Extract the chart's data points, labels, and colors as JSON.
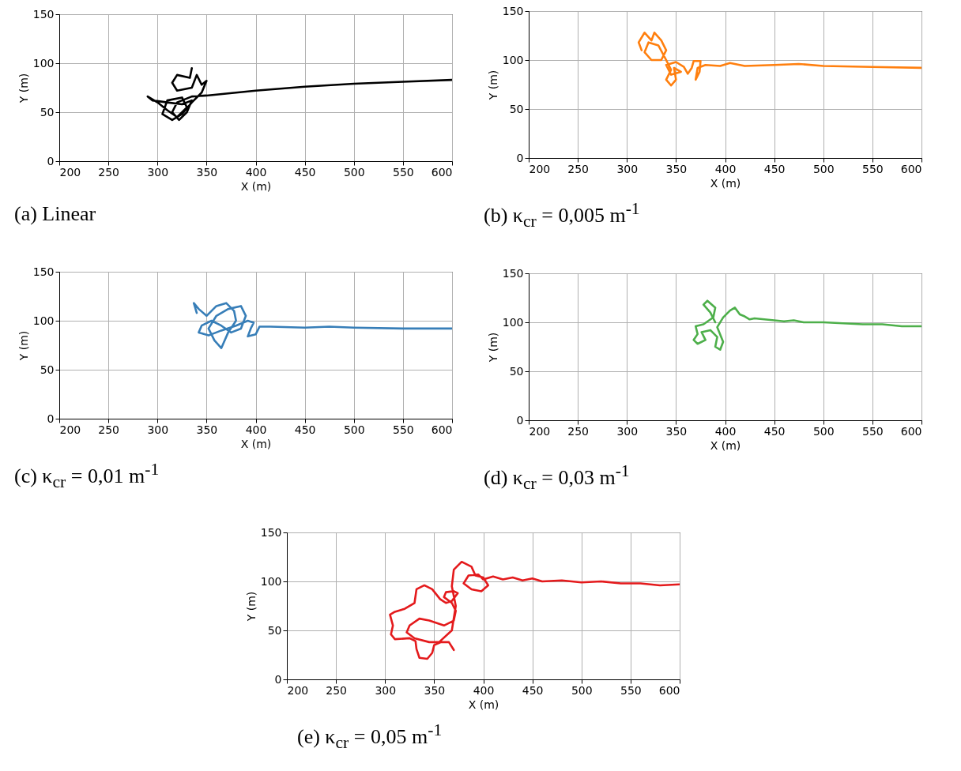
{
  "chart_data": [
    {
      "type": "line",
      "title": "(a) Linear",
      "xlabel": "X (m)",
      "ylabel": "Y (m)",
      "xlim": [
        200,
        600
      ],
      "ylim": [
        0,
        150
      ],
      "xticks": [
        200,
        250,
        300,
        350,
        400,
        450,
        500,
        550,
        600
      ],
      "yticks": [
        0,
        50,
        100,
        150
      ],
      "grid": true,
      "series": [
        {
          "color": "#000000",
          "x": [
            335,
            333,
            320,
            315,
            320,
            335,
            340,
            345,
            350,
            345,
            335,
            325,
            315,
            305,
            310,
            325,
            330,
            320,
            310,
            300,
            290,
            295,
            310,
            325,
            335,
            330,
            322,
            315,
            320,
            335,
            350,
            400,
            450,
            500,
            550,
            600
          ],
          "values": [
            95,
            85,
            88,
            80,
            72,
            75,
            88,
            78,
            82,
            70,
            60,
            48,
            42,
            48,
            62,
            65,
            55,
            45,
            52,
            60,
            66,
            62,
            60,
            58,
            62,
            50,
            42,
            50,
            60,
            66,
            67,
            72,
            76,
            79,
            81,
            83
          ]
        }
      ]
    },
    {
      "type": "line",
      "title": "(b) κ$_{cr}$ = 0,005 m$^{-1}$",
      "xlabel": "X (m)",
      "ylabel": "Y (m)",
      "xlim": [
        200,
        600
      ],
      "ylim": [
        0,
        150
      ],
      "xticks": [
        200,
        250,
        300,
        350,
        400,
        450,
        500,
        550,
        600
      ],
      "yticks": [
        0,
        50,
        100,
        150
      ],
      "grid": true,
      "series": [
        {
          "color": "#ff7f0e",
          "x": [
            315,
            312,
            318,
            325,
            328,
            335,
            340,
            335,
            325,
            318,
            322,
            332,
            340,
            345,
            340,
            345,
            350,
            348,
            355,
            345,
            340,
            350,
            358,
            362,
            366,
            368,
            375,
            374,
            370,
            372,
            380,
            395,
            405,
            420,
            450,
            475,
            500,
            550,
            600
          ],
          "values": [
            110,
            118,
            128,
            120,
            128,
            120,
            110,
            100,
            100,
            108,
            118,
            115,
            100,
            90,
            80,
            74,
            80,
            92,
            88,
            85,
            95,
            98,
            93,
            86,
            92,
            99,
            99,
            88,
            80,
            92,
            95,
            94,
            97,
            94,
            95,
            96,
            94,
            93,
            92
          ]
        }
      ]
    },
    {
      "type": "line",
      "title": "(c) κ$_{cr}$ = 0,01 m$^{-1}$",
      "xlabel": "X (m)",
      "ylabel": "Y (m)",
      "xlim": [
        200,
        600
      ],
      "ylim": [
        0,
        150
      ],
      "xticks": [
        200,
        250,
        300,
        350,
        400,
        450,
        500,
        550,
        600
      ],
      "yticks": [
        0,
        50,
        100,
        150
      ],
      "grid": true,
      "series": [
        {
          "color": "#377eb8",
          "x": [
            340,
            337,
            342,
            350,
            360,
            370,
            378,
            380,
            372,
            365,
            358,
            352,
            360,
            372,
            385,
            390,
            385,
            375,
            365,
            355,
            345,
            342,
            352,
            365,
            380,
            392,
            398,
            395,
            392,
            400,
            404,
            415,
            450,
            475,
            500,
            550,
            600
          ],
          "values": [
            108,
            118,
            112,
            105,
            115,
            118,
            110,
            100,
            88,
            72,
            80,
            92,
            105,
            112,
            115,
            105,
            92,
            88,
            95,
            100,
            95,
            88,
            85,
            90,
            95,
            100,
            98,
            92,
            84,
            86,
            94,
            94,
            93,
            94,
            93,
            92,
            92
          ]
        }
      ]
    },
    {
      "type": "line",
      "title": "(d) κ$_{cr}$ = 0,03 m$^{-1}$",
      "xlabel": "X (m)",
      "ylabel": "Y (m)",
      "xlim": [
        200,
        600
      ],
      "ylim": [
        0,
        150
      ],
      "xticks": [
        200,
        250,
        300,
        350,
        400,
        450,
        500,
        550,
        600
      ],
      "yticks": [
        0,
        50,
        100,
        150
      ],
      "grid": true,
      "series": [
        {
          "color": "#4daf4a",
          "x": [
            390,
            385,
            378,
            382,
            390,
            388,
            378,
            370,
            372,
            368,
            372,
            380,
            376,
            385,
            392,
            390,
            395,
            398,
            392,
            398,
            405,
            410,
            415,
            420,
            425,
            430,
            440,
            450,
            460,
            470,
            480,
            500,
            520,
            540,
            560,
            580,
            600
          ],
          "values": [
            100,
            110,
            118,
            122,
            115,
            105,
            98,
            96,
            88,
            82,
            78,
            82,
            90,
            92,
            85,
            75,
            72,
            80,
            95,
            105,
            112,
            115,
            108,
            106,
            103,
            104,
            103,
            102,
            101,
            102,
            100,
            100,
            99,
            98,
            98,
            96,
            96
          ]
        }
      ]
    },
    {
      "type": "line",
      "title": "(e) κ$_{cr}$ = 0,05 m$^{-1}$",
      "xlabel": "X (m)",
      "ylabel": "Y (m)",
      "xlim": [
        200,
        600
      ],
      "ylim": [
        0,
        150
      ],
      "xticks": [
        200,
        250,
        300,
        350,
        400,
        450,
        500,
        550,
        600
      ],
      "yticks": [
        0,
        50,
        100,
        150
      ],
      "grid": true,
      "series": [
        {
          "color": "#e41a1c",
          "x": [
            370,
            365,
            357,
            350,
            348,
            343,
            335,
            332,
            331,
            325,
            310,
            306,
            308,
            305,
            310,
            320,
            330,
            332,
            340,
            348,
            356,
            362,
            368,
            374,
            370,
            362,
            360,
            368,
            372,
            370,
            360,
            345,
            335,
            325,
            322,
            330,
            345,
            355,
            368,
            372,
            368,
            370,
            378,
            388,
            392,
            400,
            405,
            398,
            388,
            380,
            385,
            395,
            400,
            410,
            420,
            430,
            440,
            450,
            460,
            480,
            500,
            520,
            540,
            560,
            580,
            600
          ],
          "values": [
            30,
            38,
            38,
            35,
            27,
            21,
            22,
            31,
            39,
            42,
            41,
            46,
            55,
            66,
            69,
            72,
            78,
            92,
            96,
            92,
            82,
            78,
            80,
            88,
            90,
            89,
            84,
            78,
            70,
            60,
            55,
            60,
            62,
            55,
            48,
            42,
            38,
            38,
            50,
            75,
            95,
            112,
            120,
            115,
            106,
            104,
            96,
            90,
            92,
            98,
            106,
            107,
            102,
            105,
            102,
            104,
            101,
            103,
            100,
            101,
            99,
            100,
            98,
            98,
            96,
            97
          ]
        }
      ]
    }
  ]
}
